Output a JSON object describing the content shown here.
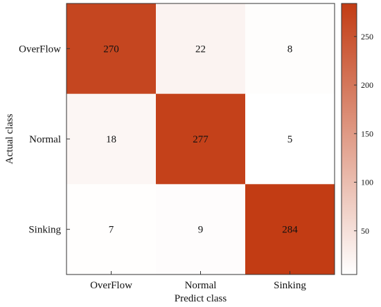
{
  "chart_data": {
    "type": "heatmap",
    "title": "",
    "xlabel": "Predict class",
    "ylabel": "Actual class",
    "x_categories": [
      "OverFlow",
      "Normal",
      "Sinking"
    ],
    "y_categories": [
      "OverFlow",
      "Normal",
      "Sinking"
    ],
    "values": [
      [
        270,
        22,
        8
      ],
      [
        18,
        277,
        5
      ],
      [
        7,
        9,
        284
      ]
    ],
    "colorbar": {
      "range": [
        5,
        284
      ],
      "ticks": [
        50,
        100,
        150,
        200,
        250
      ],
      "color_low": "#ffffff",
      "color_high": "#c23c14"
    }
  }
}
